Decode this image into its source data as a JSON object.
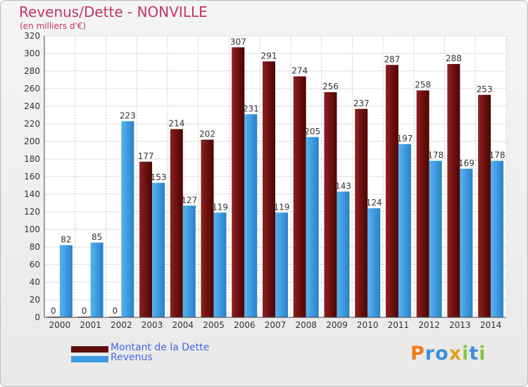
{
  "title": "Revenus/Dette - NONVILLE",
  "subtitle": "(en milliers d'€)",
  "chart_data": {
    "type": "bar",
    "categories": [
      "2000",
      "2001",
      "2002",
      "2003",
      "2004",
      "2005",
      "2006",
      "2007",
      "2008",
      "2009",
      "2010",
      "2011",
      "2012",
      "2013",
      "2014"
    ],
    "series": [
      {
        "name": "Montant de la Dette",
        "color": "#7a1414",
        "values": [
          0,
          0,
          0,
          177,
          214,
          202,
          307,
          291,
          274,
          256,
          237,
          287,
          258,
          288,
          253
        ]
      },
      {
        "name": "Revenus",
        "color": "#3d9be0",
        "values": [
          82,
          85,
          223,
          153,
          127,
          119,
          231,
          119,
          205,
          143,
          124,
          197,
          178,
          169,
          178
        ]
      }
    ],
    "data_labels": [
      [
        "0",
        "0",
        "0",
        "177",
        "214",
        "202",
        "307",
        "291",
        "274",
        "256",
        "237",
        "287",
        "258",
        "288",
        "253"
      ],
      [
        "82",
        "85",
        "223",
        "153",
        "127",
        "119",
        "231",
        "119",
        "205",
        "143",
        "124",
        "197",
        "178",
        "169",
        "178"
      ]
    ],
    "ylim": [
      0,
      320
    ],
    "yticks": [
      0,
      20,
      40,
      60,
      80,
      100,
      120,
      140,
      160,
      180,
      200,
      220,
      240,
      260,
      280,
      300,
      320
    ],
    "grid": true,
    "legend_position": "bottom-left"
  },
  "legend": {
    "debt_label": "Montant de la Dette",
    "revenue_label": "Revenus",
    "debt_color": "#5e0c0c",
    "revenue_color": "#3d9be0"
  },
  "logo": {
    "letters": [
      "P",
      "r",
      "o",
      "x",
      "i",
      "t",
      "i"
    ],
    "colors": [
      "#f07a1a",
      "#3a8fd8",
      "#3a8fd8",
      "#e0a020",
      "#8cc63e",
      "#3a8fd8",
      "#8cc63e"
    ]
  }
}
